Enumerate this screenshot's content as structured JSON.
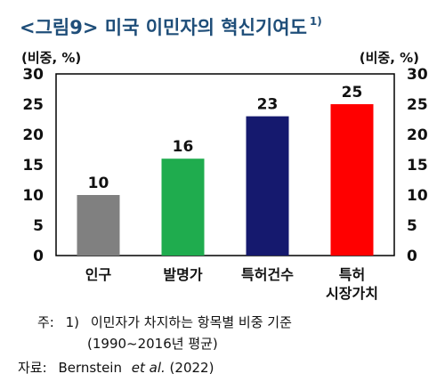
{
  "figure": {
    "title": "<그림9> 미국 이민자의 혁신기여도",
    "title_footnote_marker": "1)",
    "notes": {
      "note_prefix": "주:",
      "note_number": "1)",
      "note_line1": "이민자가 차지하는 항목별 비중 기준",
      "note_line2": "(1990~2016년 평균)",
      "source_prefix": "자료:",
      "source_author": "Bernstein",
      "source_etal": "et al.",
      "source_year": "(2022)"
    }
  },
  "chart_data": {
    "type": "bar",
    "categories": [
      "인구",
      "발명가",
      "특허건수",
      "특허\n시장가치"
    ],
    "category_lines": [
      [
        "인구"
      ],
      [
        "발명가"
      ],
      [
        "특허건수"
      ],
      [
        "특허",
        "시장가치"
      ]
    ],
    "values": [
      10,
      16,
      23,
      25
    ],
    "value_labels": [
      "10",
      "16",
      "23",
      "25"
    ],
    "colors": [
      "#808080",
      "#1fac4e",
      "#15196e",
      "#ff0000"
    ],
    "ylabel_left": "(비중, %)",
    "ylabel_right": "(비중, %)",
    "ylim": [
      0,
      30
    ],
    "yticks": [
      0,
      5,
      10,
      15,
      20,
      25,
      30
    ],
    "grid": false,
    "legend": false
  }
}
